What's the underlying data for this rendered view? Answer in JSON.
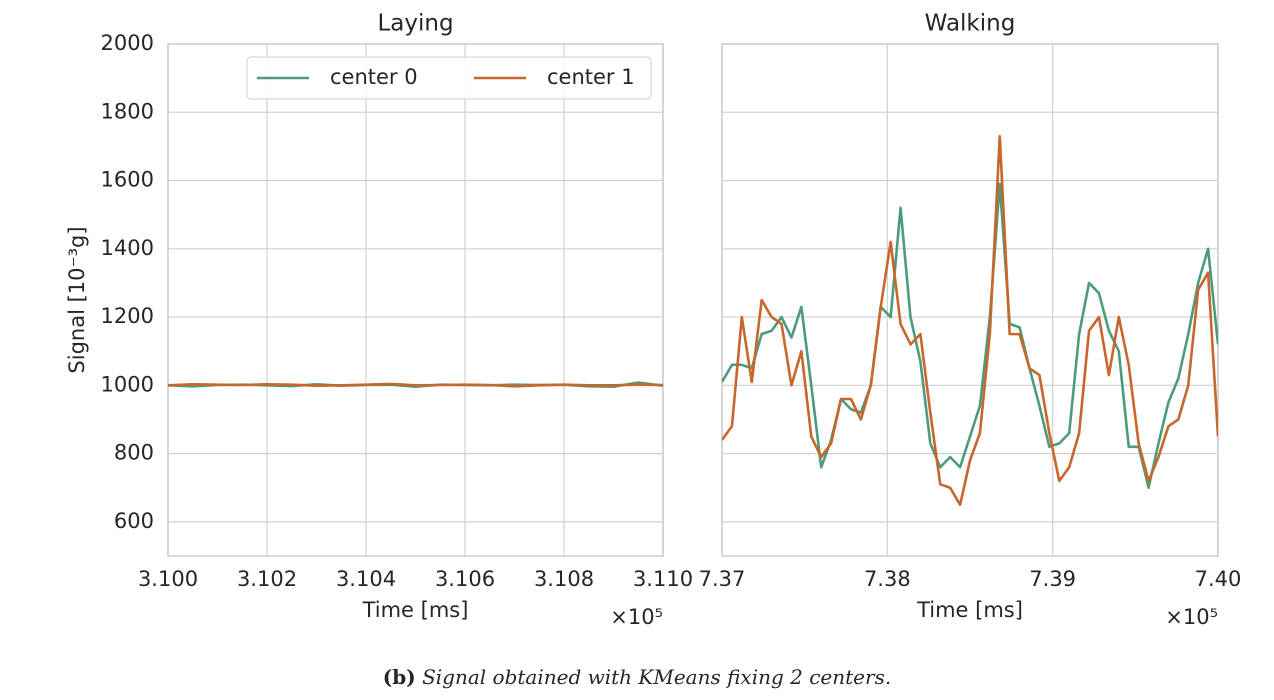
{
  "chart_data": [
    {
      "type": "line",
      "title": "Laying",
      "ylabel": "Signal [10⁻³g]",
      "xlabel": "Time [ms]",
      "x_offset_label": "×10⁵",
      "xlim": [
        310000,
        311000
      ],
      "xticks": [
        {
          "value": 310000,
          "label": "3.100"
        },
        {
          "value": 310200,
          "label": "3.102"
        },
        {
          "value": 310400,
          "label": "3.104"
        },
        {
          "value": 310600,
          "label": "3.106"
        },
        {
          "value": 310800,
          "label": "3.108"
        },
        {
          "value": 311000,
          "label": "3.110"
        }
      ],
      "ylim": [
        500,
        2000
      ],
      "yticks": [
        600,
        800,
        1000,
        1200,
        1400,
        1600,
        1800,
        2000
      ],
      "grid": true,
      "legend": "upper center",
      "x": [
        310000,
        310050,
        310100,
        310150,
        310200,
        310250,
        310300,
        310350,
        310400,
        310450,
        310500,
        310550,
        310600,
        310650,
        310700,
        310750,
        310800,
        310850,
        310900,
        310950,
        311000
      ],
      "series": [
        {
          "name": "center 0",
          "color": "#4c9c7b",
          "values": [
            1000,
            997,
            1001,
            1002,
            1000,
            998,
            1003,
            999,
            1001,
            1002,
            996,
            1002,
            1001,
            1000,
            1002,
            1001,
            1002,
            997,
            996,
            1008,
            999
          ]
        },
        {
          "name": "center 1",
          "color": "#c8662b",
          "values": [
            1000,
            1003,
            1002,
            1001,
            1003,
            1002,
            999,
            1000,
            1002,
            1004,
            1000,
            1001,
            1002,
            1001,
            997,
            1000,
            1002,
            1000,
            1000,
            1002,
            1001
          ]
        }
      ]
    },
    {
      "type": "line",
      "title": "Walking",
      "xlabel": "Time [ms]",
      "x_offset_label": "×10⁵",
      "xlim": [
        737000,
        740000
      ],
      "xticks": [
        {
          "value": 737000,
          "label": "7.37"
        },
        {
          "value": 738000,
          "label": "7.38"
        },
        {
          "value": 739000,
          "label": "7.39"
        },
        {
          "value": 740000,
          "label": "7.40"
        }
      ],
      "ylim": [
        500,
        2000
      ],
      "yticks": [
        600,
        800,
        1000,
        1200,
        1400,
        1600,
        1800,
        2000
      ],
      "grid": true,
      "x": [
        737000,
        737060,
        737120,
        737180,
        737240,
        737300,
        737360,
        737420,
        737480,
        737540,
        737600,
        737660,
        737720,
        737780,
        737840,
        737900,
        737960,
        738020,
        738080,
        738140,
        738200,
        738260,
        738320,
        738380,
        738440,
        738500,
        738560,
        738620,
        738680,
        738740,
        738800,
        738860,
        738920,
        738980,
        739040,
        739100,
        739160,
        739220,
        739280,
        739340,
        739400,
        739460,
        739520,
        739580,
        739640,
        739700,
        739760,
        739820,
        739880,
        739940,
        740000
      ],
      "series": [
        {
          "name": "center 0",
          "color": "#4c9c7b",
          "values": [
            1010,
            1060,
            1060,
            1050,
            1150,
            1160,
            1200,
            1140,
            1230,
            1000,
            760,
            840,
            960,
            930,
            920,
            1000,
            1230,
            1200,
            1520,
            1200,
            1070,
            830,
            760,
            790,
            760,
            850,
            940,
            1200,
            1590,
            1180,
            1170,
            1050,
            940,
            820,
            830,
            860,
            1150,
            1300,
            1270,
            1160,
            1100,
            820,
            820,
            700,
            830,
            950,
            1020,
            1150,
            1300,
            1400,
            1120
          ]
        },
        {
          "name": "center 1",
          "color": "#c8662b",
          "values": [
            840,
            880,
            1200,
            1010,
            1250,
            1200,
            1180,
            1000,
            1100,
            850,
            790,
            830,
            960,
            960,
            900,
            1000,
            1230,
            1420,
            1180,
            1120,
            1150,
            920,
            710,
            700,
            650,
            780,
            860,
            1150,
            1730,
            1150,
            1150,
            1050,
            1030,
            860,
            720,
            760,
            860,
            1160,
            1200,
            1030,
            1200,
            1060,
            830,
            720,
            790,
            880,
            900,
            1000,
            1280,
            1330,
            850
          ]
        }
      ]
    }
  ],
  "caption": {
    "label": "(b)",
    "text": "Signal obtained with KMeans fixing 2 centers."
  }
}
